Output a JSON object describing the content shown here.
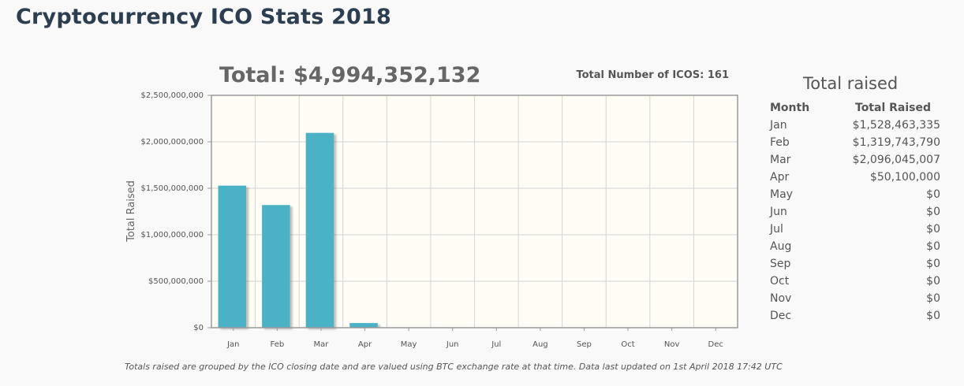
{
  "page": {
    "title": "Cryptocurrency ICO Stats 2018",
    "total_heading": "Total: $4,994,352,132",
    "count_label": "Total Number of ICOS: 161",
    "footnote": "Totals raised are grouped by the ICO closing date and are valued using BTC exchange rate at that time. Data last updated on 1st April 2018 17:42 UTC"
  },
  "table": {
    "title": "Total raised",
    "headers": [
      "Month",
      "Total Raised"
    ],
    "rows": [
      [
        "Jan",
        "$1,528,463,335"
      ],
      [
        "Feb",
        "$1,319,743,790"
      ],
      [
        "Mar",
        "$2,096,045,007"
      ],
      [
        "Apr",
        "$50,100,000"
      ],
      [
        "May",
        "$0"
      ],
      [
        "Jun",
        "$0"
      ],
      [
        "Jul",
        "$0"
      ],
      [
        "Aug",
        "$0"
      ],
      [
        "Sep",
        "$0"
      ],
      [
        "Oct",
        "$0"
      ],
      [
        "Nov",
        "$0"
      ],
      [
        "Dec",
        "$0"
      ]
    ]
  },
  "chart_data": {
    "type": "bar",
    "categories": [
      "Jan",
      "Feb",
      "Mar",
      "Apr",
      "May",
      "Jun",
      "Jul",
      "Aug",
      "Sep",
      "Oct",
      "Nov",
      "Dec"
    ],
    "values": [
      1528463335,
      1319743790,
      2096045007,
      50100000,
      0,
      0,
      0,
      0,
      0,
      0,
      0,
      0
    ],
    "ylabel": "Total Raised",
    "xlabel": "",
    "ylim": [
      0,
      2500000000
    ],
    "yticks": [
      0,
      500000000,
      1000000000,
      1500000000,
      2000000000,
      2500000000
    ],
    "ytick_labels": [
      "$0",
      "$500,000,000",
      "$1,000,000,000",
      "$1,500,000,000",
      "$2,000,000,000",
      "$2,500,000,000"
    ],
    "grid": true,
    "legend": "none",
    "bar_color": "#4bb2c5",
    "plot_background": "#fffdf6"
  }
}
